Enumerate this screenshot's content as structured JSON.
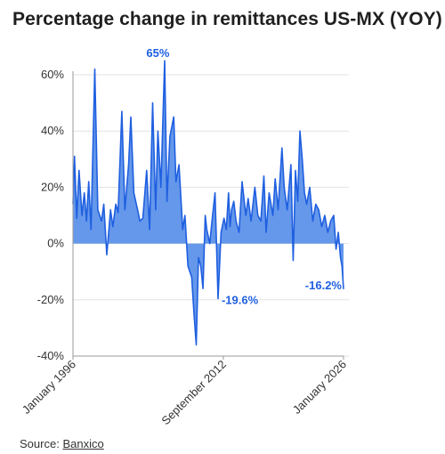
{
  "chart_data": {
    "type": "area",
    "title": "Percentage change in remittances US-MX (YOY)",
    "xlabel": "",
    "ylabel": "",
    "ylim": [
      -40,
      60
    ],
    "yticks": [
      60,
      40,
      20,
      0,
      -20,
      -40
    ],
    "ytick_labels": [
      "60%",
      "40%",
      "20%",
      "0%",
      "-20%",
      "-40%"
    ],
    "xticks": [
      "1996-01",
      "2012-09",
      "2026-01"
    ],
    "xtick_labels": [
      "January 1996",
      "September 2012",
      "January 2026"
    ],
    "x_range": [
      "1996-01",
      "2026-01"
    ],
    "grid": "horizontal",
    "legend": "none",
    "color": "#1f5fe0",
    "fill_color": "#4a86e8",
    "series": [
      {
        "x": [
          "1996-01",
          "1996-03",
          "1996-06",
          "1996-09",
          "1997-01",
          "1997-04",
          "1997-07",
          "1997-10",
          "1998-01",
          "1998-06",
          "1998-10",
          "1999-03",
          "1999-06",
          "1999-10",
          "2000-03",
          "2000-06",
          "2000-10",
          "2001-01",
          "2001-06",
          "2001-10",
          "2002-03",
          "2002-06",
          "2002-10",
          "2003-03",
          "2003-06",
          "2003-10",
          "2004-03",
          "2004-07",
          "2004-11",
          "2005-03",
          "2005-06",
          "2005-10",
          "2006-03",
          "2006-06",
          "2006-10",
          "2007-03",
          "2007-06",
          "2007-10",
          "2008-03",
          "2008-06",
          "2008-10",
          "2009-03",
          "2009-06",
          "2009-09",
          "2009-12",
          "2010-03",
          "2010-06",
          "2010-09",
          "2010-11",
          "2011-03",
          "2011-06",
          "2011-10",
          "2012-02",
          "2012-06",
          "2012-10",
          "2013-01",
          "2013-04",
          "2013-06",
          "2013-08",
          "2013-11",
          "2014-02",
          "2014-06",
          "2014-10",
          "2015-03",
          "2015-06",
          "2015-10",
          "2016-03",
          "2016-07",
          "2016-11",
          "2017-03",
          "2017-06",
          "2017-10",
          "2018-03",
          "2018-06",
          "2018-10",
          "2019-03",
          "2019-06",
          "2019-10",
          "2020-03",
          "2020-06",
          "2020-09",
          "2020-12",
          "2021-03",
          "2021-06",
          "2021-09",
          "2021-12",
          "2022-04",
          "2022-08",
          "2022-12",
          "2023-04",
          "2023-08",
          "2023-12",
          "2024-04",
          "2024-08",
          "2024-12",
          "2025-03",
          "2025-06",
          "2025-09",
          "2025-11",
          "2026-01"
        ],
        "y": [
          14,
          31,
          9,
          26,
          10,
          18,
          8,
          22,
          5,
          62,
          12,
          8,
          14,
          -4,
          12,
          6,
          14,
          11,
          47,
          12,
          28,
          45,
          18,
          12,
          8,
          9,
          26,
          5,
          50,
          12,
          40,
          20,
          65,
          15,
          38,
          45,
          22,
          28,
          5,
          10,
          -8,
          -12,
          -25,
          -36,
          -5,
          -8,
          -16,
          10,
          5,
          0,
          8,
          18,
          -19.6,
          4,
          9,
          5,
          18,
          6,
          12,
          15,
          8,
          4,
          22,
          10,
          16,
          8,
          20,
          10,
          8,
          24,
          4,
          18,
          10,
          23,
          12,
          34,
          20,
          12,
          28,
          -6,
          26,
          15,
          40,
          30,
          18,
          14,
          20,
          8,
          14,
          12,
          6,
          10,
          4,
          8,
          10,
          -2,
          4,
          -5,
          -8,
          -16.2
        ]
      }
    ],
    "annotations": [
      {
        "x": "2005-06",
        "y": 65,
        "text": "65%"
      },
      {
        "x": "2012-02",
        "y": -19.6,
        "text": "-19.6%"
      },
      {
        "x": "2026-01",
        "y": -16.2,
        "text": "-16.2%"
      }
    ]
  },
  "source": {
    "label": "Source:",
    "link_text": "Banxico"
  }
}
